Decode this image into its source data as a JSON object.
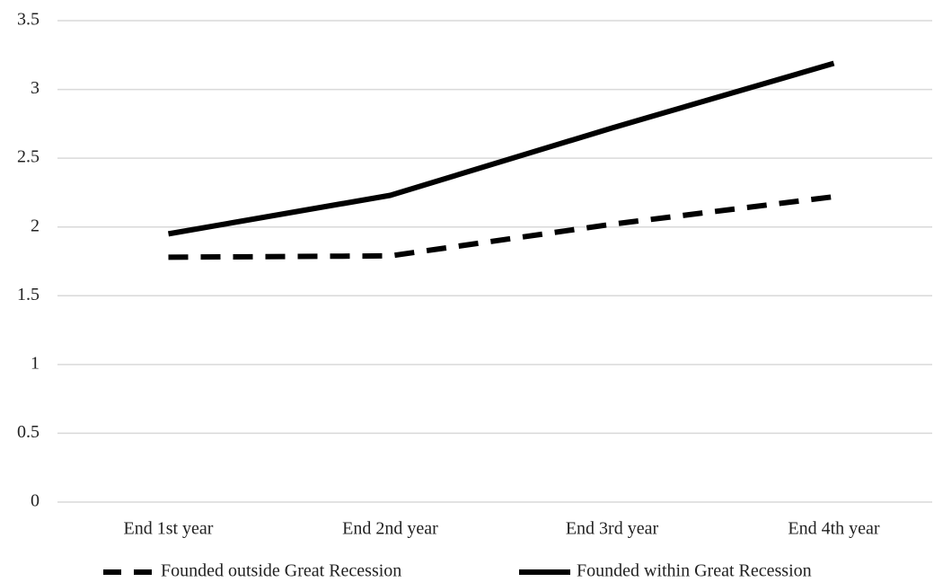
{
  "chart_data": {
    "type": "line",
    "categories": [
      "End 1st year",
      "End 2nd year",
      "End 3rd year",
      "End 4th year"
    ],
    "series": [
      {
        "name": "Founded outside Great Recession",
        "color": "#000000",
        "style": "dashed",
        "values": [
          1.78,
          1.79,
          2.02,
          2.22
        ]
      },
      {
        "name": "Founded within Great Recession",
        "color": "#000000",
        "style": "solid",
        "values": [
          1.95,
          2.23,
          2.72,
          3.19
        ]
      }
    ],
    "ylim": [
      0,
      3.5
    ],
    "yticks": [
      0,
      0.5,
      1,
      1.5,
      2,
      2.5,
      3,
      3.5
    ],
    "grid": true,
    "legend": "bottom"
  }
}
